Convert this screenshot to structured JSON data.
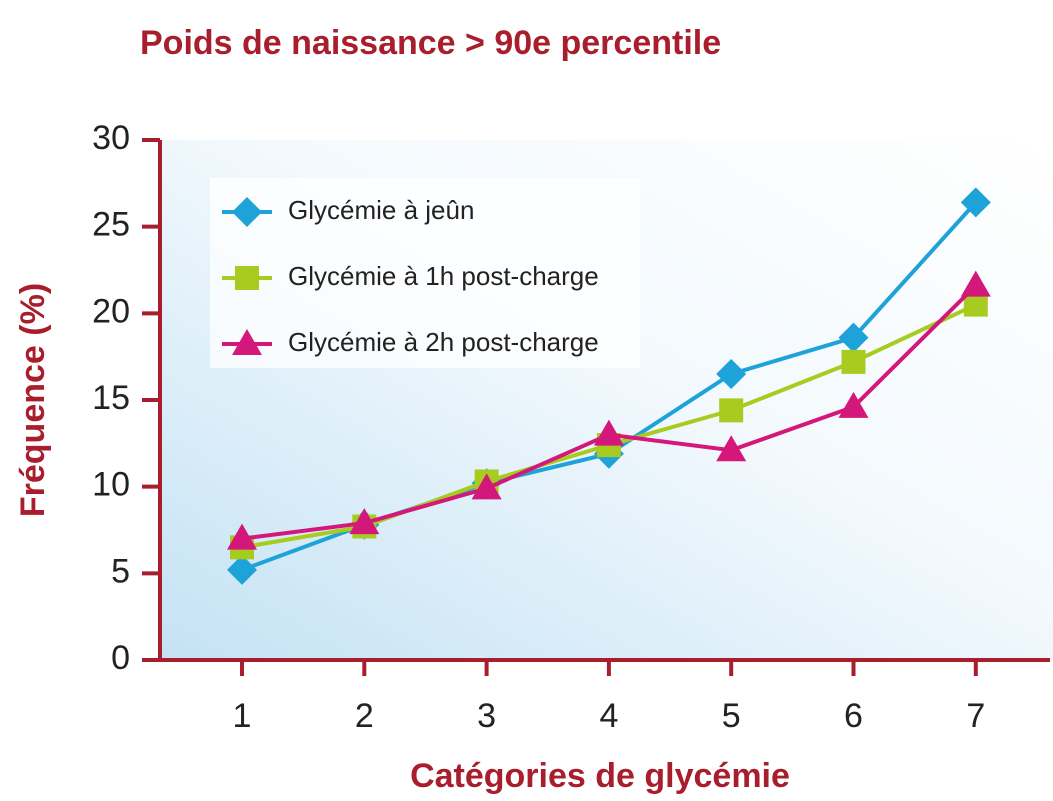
{
  "chart_data": {
    "type": "line",
    "title": "Poids de naissance > 90e percentile",
    "xlabel": "Catégories de glycémie",
    "ylabel": "Fréquence (%)",
    "categories": [
      "1",
      "2",
      "3",
      "4",
      "5",
      "6",
      "7"
    ],
    "series": [
      {
        "name": "Glycémie à jeûn",
        "color": "#1ea3d8",
        "marker": "diamond",
        "values": [
          5.2,
          7.8,
          10.2,
          11.9,
          16.5,
          18.6,
          26.4
        ]
      },
      {
        "name": "Glycémie à 1h post-charge",
        "color": "#a7cb1f",
        "marker": "square",
        "values": [
          6.5,
          7.7,
          10.3,
          12.4,
          14.4,
          17.2,
          20.5
        ]
      },
      {
        "name": "Glycémie à 2h post-charge",
        "color": "#d3177b",
        "marker": "triangle",
        "values": [
          7.0,
          7.9,
          9.9,
          13.0,
          12.1,
          14.6,
          21.6
        ]
      }
    ],
    "ylim": [
      0,
      30
    ],
    "yticks": [
      0,
      5,
      10,
      15,
      20,
      25,
      30
    ],
    "axis_color": "#a81e2c",
    "legend": "upper left"
  }
}
